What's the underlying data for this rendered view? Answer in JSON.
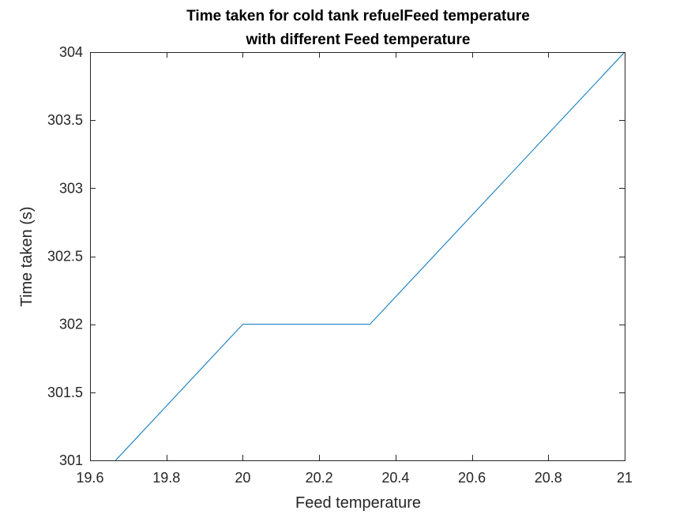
{
  "chart_data": {
    "type": "line",
    "title": [
      "Time taken for cold tank refuelFeed temperature",
      "with different Feed temperature"
    ],
    "xlabel": "Feed temperature",
    "ylabel": "Time taken (s)",
    "xlim": [
      19.6,
      21
    ],
    "ylim": [
      301,
      304
    ],
    "xticks": [
      19.6,
      19.8,
      20,
      20.2,
      20.4,
      20.6,
      20.8,
      21
    ],
    "xtick_labels": [
      "19.6",
      "19.8",
      "20",
      "20.2",
      "20.4",
      "20.6",
      "20.8",
      "21"
    ],
    "yticks": [
      301,
      301.5,
      302,
      302.5,
      303,
      303.5,
      304
    ],
    "ytick_labels": [
      "301",
      "301.5",
      "302",
      "302.5",
      "303",
      "303.5",
      "304"
    ],
    "grid": false,
    "series": [
      {
        "color": "#0072bd",
        "x": [
          19.667,
          20,
          20.333,
          21
        ],
        "y": [
          301,
          302,
          302,
          304
        ]
      }
    ]
  }
}
